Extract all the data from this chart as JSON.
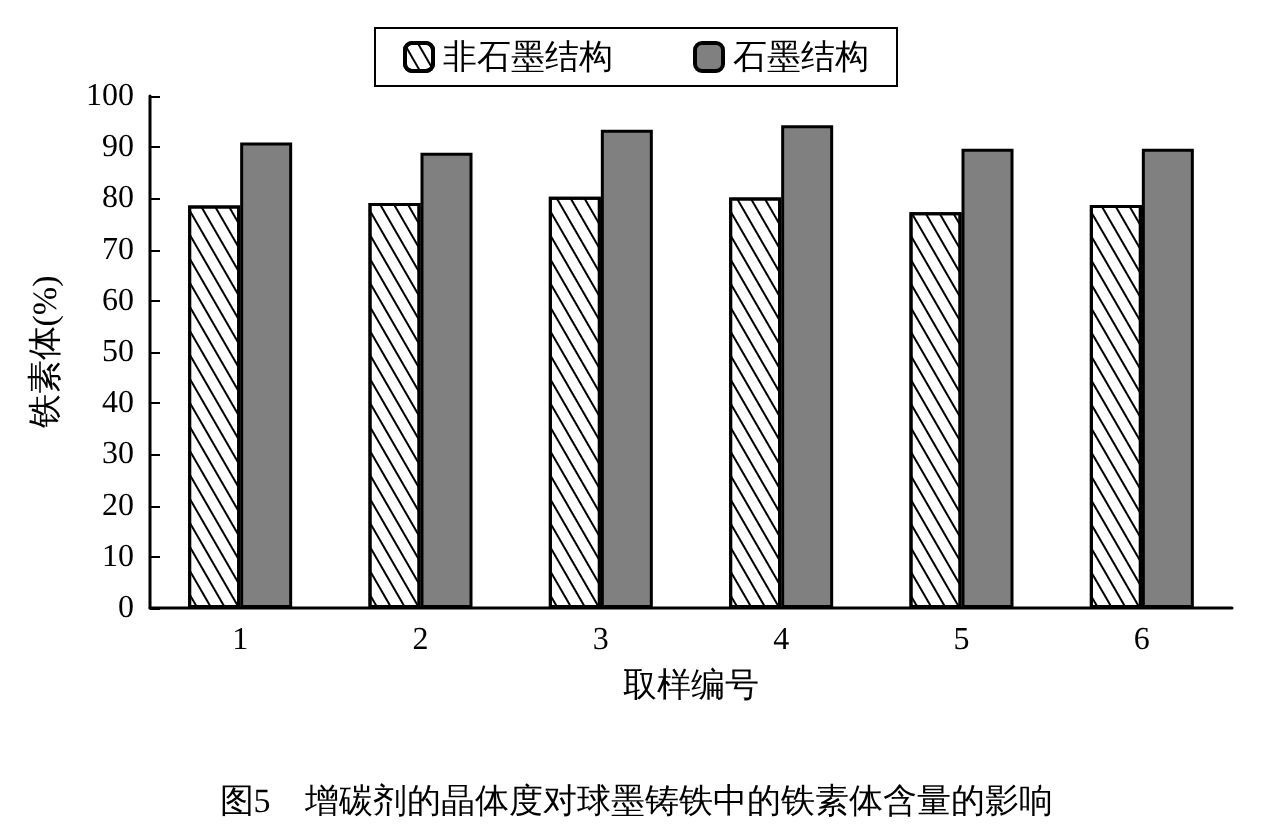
{
  "chart_data": {
    "type": "bar",
    "xlabel": "取样编号",
    "ylabel": "铁素体(%)",
    "annotations": [
      "图5　增碳剂的晶体度对球墨铸铁中的铁素体含量的影响"
    ],
    "categories": [
      "1",
      "2",
      "3",
      "4",
      "5",
      "6"
    ],
    "series": [
      {
        "name": "非石墨结构",
        "color": "#ffffff",
        "values": [
          78.6,
          79.1,
          80.3,
          80.2,
          77.3,
          78.7
        ]
      },
      {
        "name": "石墨结构",
        "color": "#808080",
        "values": [
          90.9,
          88.9,
          93.4,
          94.3,
          89.7,
          89.7
        ]
      }
    ],
    "ylim": [
      0,
      100
    ],
    "yticks": [
      0,
      10,
      20,
      30,
      40,
      50,
      60,
      70,
      80,
      90,
      100
    ],
    "grid": false,
    "legend": "top"
  }
}
